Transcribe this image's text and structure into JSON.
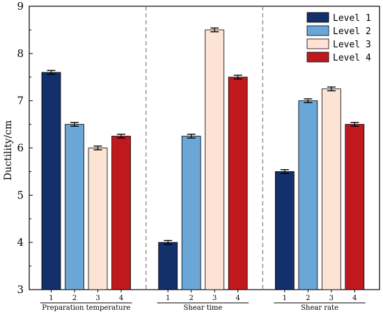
{
  "chart_data": {
    "type": "bar",
    "ylabel": "Ductility/cm",
    "xlabel": "",
    "ylim": [
      3,
      9
    ],
    "yticks": [
      3,
      4,
      5,
      6,
      7,
      8,
      9
    ],
    "groups": [
      {
        "name": "Preparation temperature",
        "categories": [
          "1",
          "2",
          "3",
          "4"
        ],
        "values": [
          7.6,
          6.5,
          6.0,
          6.25
        ],
        "errors": [
          0.04,
          0.04,
          0.04,
          0.04
        ]
      },
      {
        "name": "Shear time",
        "categories": [
          "1",
          "2",
          "3",
          "4"
        ],
        "values": [
          4.0,
          6.25,
          8.5,
          7.5
        ],
        "errors": [
          0.04,
          0.04,
          0.04,
          0.04
        ]
      },
      {
        "name": "Shear rate",
        "categories": [
          "1",
          "2",
          "3",
          "4"
        ],
        "values": [
          5.5,
          7.0,
          7.25,
          6.5
        ],
        "errors": [
          0.04,
          0.04,
          0.04,
          0.04
        ]
      }
    ],
    "series": [
      {
        "name": "Level 1",
        "color": "#13306b"
      },
      {
        "name": "Level 2",
        "color": "#6aa6d6"
      },
      {
        "name": "Level 3",
        "color": "#fde3d3"
      },
      {
        "name": "Level 4",
        "color": "#c0191d"
      }
    ],
    "legend_position": "top-right",
    "grid": false
  }
}
